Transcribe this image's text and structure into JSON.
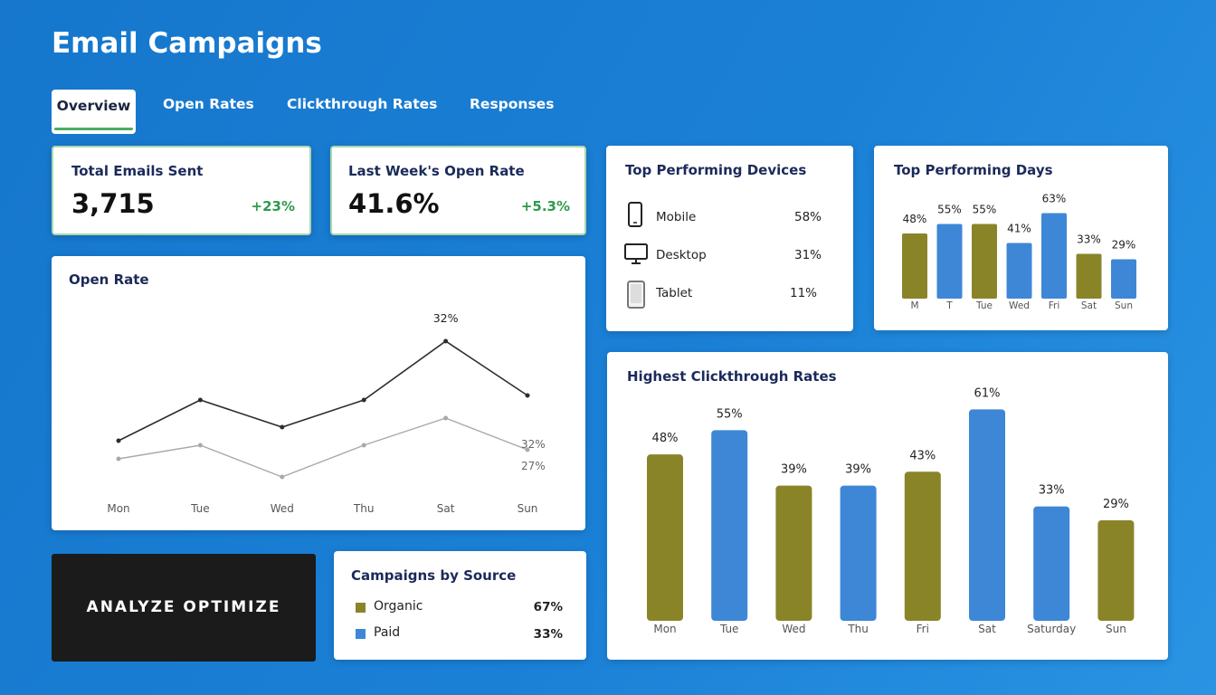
{
  "header": {
    "title": "Email Campaigns"
  },
  "tabs": [
    "Overview",
    "Open Rates",
    "Clickthrough Rates",
    "Responses"
  ],
  "stats": [
    {
      "label": "Total Emails Sent",
      "value": "3,715",
      "change": "+23%"
    },
    {
      "label": "Last Week's Open Rate",
      "value": "41.6%",
      "change": "+5.3%"
    }
  ],
  "devices": {
    "title": "Top Performing Devices",
    "rows": [
      {
        "name": "Mobile",
        "value": "58%"
      },
      {
        "name": "Desktop",
        "value": "31%"
      },
      {
        "name": "Tablet",
        "value": "11%"
      }
    ]
  },
  "open_rate": {
    "type": "line",
    "title": "Open Rate",
    "categories": [
      "Mon",
      "Tue",
      "Wed",
      "Thu",
      "Sat",
      "Sun"
    ],
    "series": [
      {
        "color": "#2d2d2d",
        "values": [
          21,
          25.5,
          22.5,
          25.5,
          32,
          26
        ],
        "value_labels": [
          null,
          null,
          null,
          null,
          "32%",
          null
        ]
      },
      {
        "color": "#a9a9a9",
        "values": [
          19,
          20.5,
          17,
          20.5,
          23.5,
          20
        ]
      }
    ],
    "annotations": [
      "32%",
      "27%"
    ]
  },
  "top_days": {
    "type": "bar",
    "title": "Top Performing Days",
    "categories": [
      "M",
      "T",
      "Tue",
      "Wed",
      "Fri",
      "Sat",
      "Sun"
    ],
    "values": [
      48,
      55,
      55,
      41,
      63,
      33,
      29
    ],
    "value_labels": [
      "48%",
      "55%",
      "55%",
      "41%",
      "63%",
      "33%",
      "29%"
    ],
    "colors": [
      "#8a8429",
      "#3d87d6",
      "#8a8429",
      "#3d87d6",
      "#3d87d6",
      "#8a8429",
      "#3d87d6"
    ]
  },
  "banner": {
    "text": "ANALYZE OPTIMIZE"
  },
  "sources": {
    "title": "Campaigns by Source",
    "rows": [
      {
        "name": "Organic",
        "value": "67%",
        "color": "#8a8429"
      },
      {
        "name": "Paid",
        "value": "33%",
        "color": "#3d87d6"
      }
    ]
  },
  "clickthrough": {
    "type": "bar",
    "title": "Highest Clickthrough Rates",
    "categories": [
      "Mon",
      "Tue",
      "Wed",
      "Thu",
      "Fri",
      "Sat",
      "Saturday",
      "Sun"
    ],
    "values": [
      48,
      55,
      39,
      39,
      43,
      61,
      33,
      29
    ],
    "value_labels": [
      "48%",
      "55%",
      "39%",
      "39%",
      "43%",
      "61%",
      "33%",
      "29%"
    ],
    "colors": [
      "#8a8429",
      "#3d87d6",
      "#8a8429",
      "#3d87d6",
      "#8a8429",
      "#3d87d6",
      "#3d87d6",
      "#8a8429"
    ]
  }
}
